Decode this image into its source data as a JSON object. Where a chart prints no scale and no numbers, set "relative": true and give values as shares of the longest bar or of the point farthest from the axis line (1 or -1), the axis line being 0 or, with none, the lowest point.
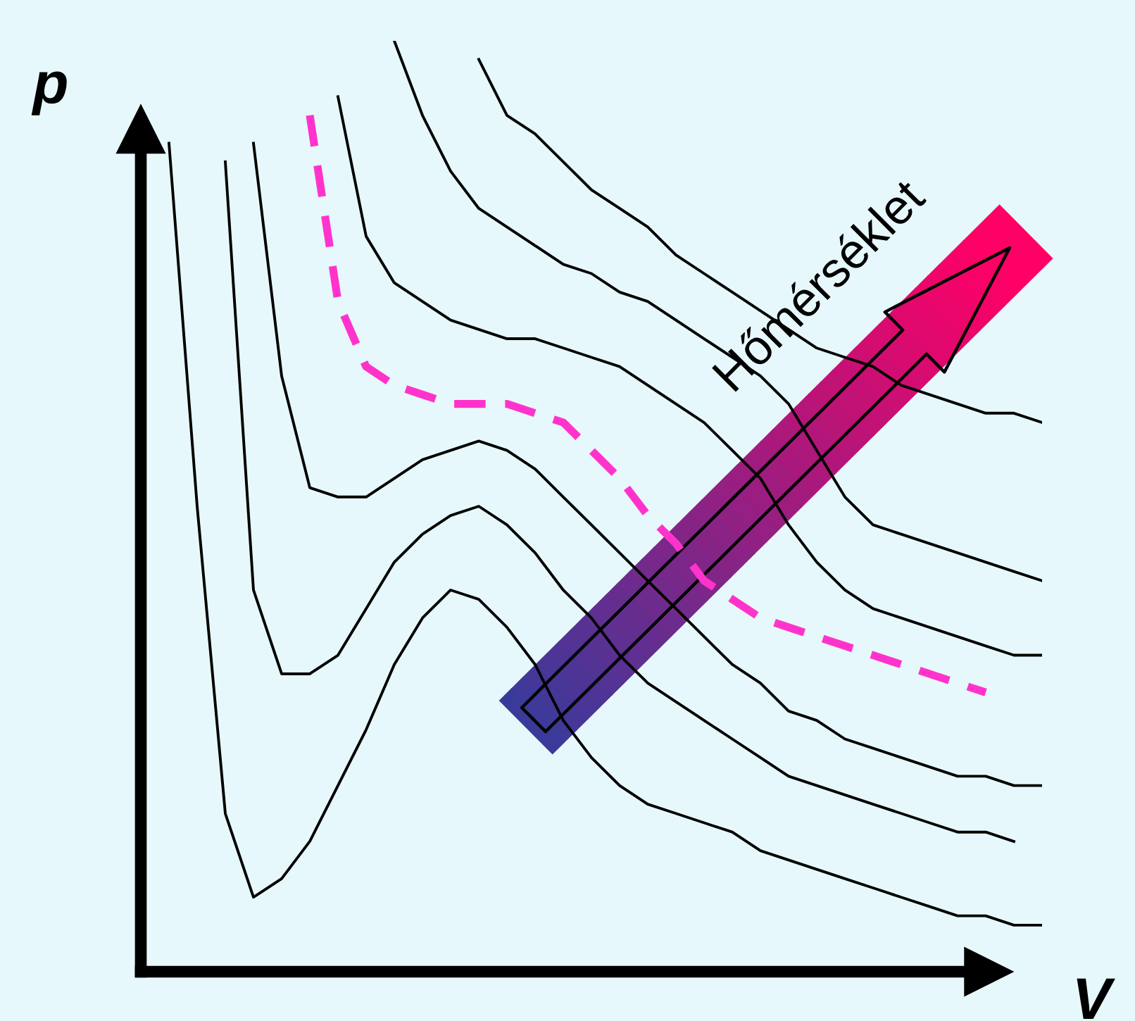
{
  "chart_data": {
    "type": "line",
    "relative": true,
    "xlabel": "V",
    "ylabel": "p",
    "annotations": [
      "Hőmérséklet"
    ],
    "categories": [
      null,
      null,
      null,
      null,
      null,
      null,
      null,
      null,
      null,
      null,
      null,
      null,
      null,
      null,
      null,
      null,
      null,
      null,
      null,
      null,
      null,
      null,
      null,
      null,
      null,
      null,
      null,
      null,
      null,
      null,
      null,
      null
    ],
    "series": [
      {
        "color": "#000000",
        "line_style": "solid",
        "values": [
          0.89,
          0.5,
          0.17,
          0.08,
          0.1,
          0.14,
          0.2,
          0.26,
          0.33,
          0.38,
          0.41,
          0.4,
          0.37,
          0.33,
          0.27,
          0.23,
          0.2,
          0.18,
          0.17,
          0.16,
          0.15,
          0.13,
          0.12,
          0.11,
          0.1,
          0.09,
          0.08,
          0.07,
          0.06,
          0.06,
          0.05,
          0.05
        ]
      },
      {
        "color": "#000000",
        "line_style": "solid",
        "values": [
          null,
          null,
          0.87,
          0.41,
          0.32,
          0.32,
          0.34,
          0.39,
          0.44,
          0.47,
          0.49,
          0.5,
          0.48,
          0.45,
          0.41,
          0.38,
          0.34,
          0.31,
          0.29,
          0.27,
          0.25,
          0.23,
          0.21,
          0.2,
          0.19,
          0.18,
          0.17,
          0.16,
          0.15,
          0.15,
          0.14,
          null
        ]
      },
      {
        "color": "#000000",
        "line_style": "solid",
        "values": [
          null,
          null,
          null,
          0.89,
          0.64,
          0.52,
          0.51,
          0.51,
          0.53,
          0.55,
          0.56,
          0.57,
          0.56,
          0.54,
          0.51,
          0.48,
          0.45,
          0.42,
          0.39,
          0.36,
          0.33,
          0.31,
          0.28,
          0.27,
          0.25,
          0.24,
          0.23,
          0.22,
          0.21,
          0.21,
          0.2,
          0.2
        ]
      },
      {
        "color": "#ff33cc",
        "line_style": "dashed",
        "values": [
          null,
          null,
          null,
          null,
          null,
          0.92,
          0.72,
          0.65,
          0.63,
          0.62,
          0.61,
          0.61,
          0.61,
          0.6,
          0.59,
          0.56,
          0.53,
          0.49,
          0.46,
          0.42,
          0.4,
          0.38,
          0.37,
          0.36,
          0.35,
          0.34,
          0.33,
          0.32,
          0.31,
          0.3,
          null,
          null
        ]
      },
      {
        "color": "#000000",
        "line_style": "solid",
        "values": [
          null,
          null,
          null,
          null,
          null,
          null,
          0.94,
          0.79,
          0.74,
          0.72,
          0.7,
          0.69,
          0.68,
          0.68,
          0.67,
          0.66,
          0.65,
          0.63,
          0.61,
          0.59,
          0.56,
          0.53,
          0.48,
          0.44,
          0.41,
          0.39,
          0.38,
          0.37,
          0.36,
          0.35,
          0.34,
          0.34
        ]
      },
      {
        "color": "#000000",
        "line_style": "solid",
        "values": [
          null,
          null,
          null,
          null,
          null,
          null,
          null,
          null,
          1.0,
          0.92,
          0.86,
          0.82,
          0.8,
          0.78,
          0.76,
          0.75,
          0.73,
          0.72,
          0.7,
          0.68,
          0.66,
          0.64,
          0.61,
          0.56,
          0.51,
          0.48,
          0.47,
          0.46,
          0.45,
          0.44,
          0.43,
          0.42
        ]
      },
      {
        "color": "#000000",
        "line_style": "solid",
        "values": [
          null,
          null,
          null,
          null,
          null,
          null,
          null,
          null,
          null,
          null,
          null,
          0.98,
          0.92,
          0.9,
          0.87,
          0.84,
          0.82,
          0.8,
          0.77,
          0.75,
          0.73,
          0.71,
          0.69,
          0.67,
          0.66,
          0.65,
          0.63,
          0.62,
          0.61,
          0.6,
          0.6,
          0.59
        ]
      }
    ]
  }
}
